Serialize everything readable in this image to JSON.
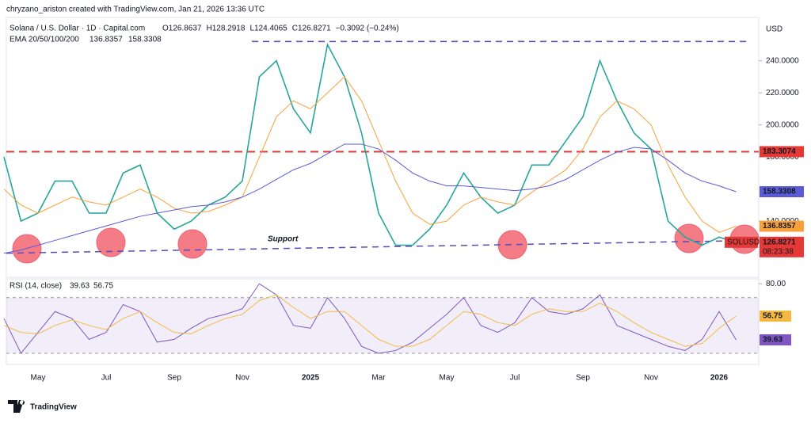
{
  "credit": "chryzano_ariston created with TradingView.com, Jan 21, 2026 13:36 UTC",
  "brand": "TradingView",
  "chart_data": {
    "type": "line",
    "title": "Solana / U.S. Dollar · 1D · Capital.com",
    "ohlc": [
      "O126.8637",
      "H128.2918",
      "L124.4065",
      "C126.8271",
      "−0.3092 (−0.24%)"
    ],
    "currency": "USD",
    "symbol": "SOLUSD",
    "countdown": "08:23:38",
    "indicator": "EMA 20/50/100/200",
    "categories": [
      null,
      null,
      "May",
      null,
      null,
      null,
      "Jul",
      null,
      null,
      null,
      "Sep",
      null,
      null,
      null,
      "Nov",
      null,
      null,
      null,
      "2025",
      null,
      null,
      null,
      "Mar",
      null,
      null,
      null,
      "May",
      null,
      null,
      null,
      "Jul",
      null,
      null,
      null,
      "Sep",
      null,
      null,
      null,
      "Nov",
      null,
      null,
      null,
      "2026",
      null
    ],
    "series": [
      {
        "name": "SOLUSD",
        "color": "#26a69a",
        "values": [
          180,
          140,
          145,
          165,
          165,
          145,
          145,
          170,
          175,
          145,
          135,
          140,
          150,
          155,
          165,
          230,
          240,
          210,
          195,
          250,
          230,
          195,
          145,
          125,
          125,
          135,
          150,
          170,
          155,
          145,
          150,
          175,
          175,
          190,
          205,
          240,
          215,
          195,
          185,
          140,
          130,
          125,
          130,
          126.8271
        ]
      },
      {
        "name": "EMA 50",
        "color": "#f7a13b",
        "values": [
          160,
          150,
          145,
          150,
          155,
          152,
          150,
          155,
          160,
          155,
          148,
          145,
          146,
          150,
          155,
          180,
          205,
          215,
          210,
          220,
          230,
          215,
          190,
          165,
          145,
          138,
          140,
          150,
          155,
          152,
          150,
          158,
          165,
          172,
          185,
          205,
          215,
          210,
          200,
          175,
          155,
          140,
          133,
          136.8357
        ]
      },
      {
        "name": "EMA 200",
        "color": "#5b5bd6",
        "values": [
          120,
          122,
          125,
          128,
          131,
          134,
          137,
          140,
          143,
          145,
          147,
          149,
          150,
          152,
          155,
          160,
          166,
          172,
          176,
          182,
          188,
          188,
          185,
          178,
          170,
          165,
          162,
          162,
          161,
          160,
          159,
          160,
          162,
          166,
          172,
          178,
          183,
          186,
          185,
          178,
          170,
          165,
          162,
          158.3308
        ]
      }
    ],
    "ylim": [
      105,
      267
    ],
    "yticks": [
      {
        "value": 140,
        "label": "140.0000"
      },
      {
        "value": 180,
        "label": "180.0000"
      },
      {
        "value": 200,
        "label": "200.0000"
      },
      {
        "value": 220,
        "label": "220.0000"
      },
      {
        "value": 240,
        "label": "240.0000"
      }
    ],
    "level": {
      "value": 183.3074,
      "color": "#e53935"
    },
    "resistance": {
      "value": 252,
      "color": "#5b4bb7"
    },
    "support": {
      "label": "Support",
      "start": 120,
      "end": 128,
      "color": "#5b4bb7"
    },
    "rsi": {
      "title": "RSI (14, close)",
      "ylim": [
        22,
        83.5
      ],
      "yticks": [
        {
          "value": 80,
          "label": "80.00"
        }
      ],
      "band": [
        30,
        70
      ],
      "series": [
        {
          "name": "RSI",
          "color": "#7e57c2",
          "values": [
            55,
            30,
            45,
            60,
            55,
            40,
            45,
            65,
            60,
            38,
            40,
            48,
            55,
            58,
            62,
            80,
            72,
            50,
            48,
            70,
            55,
            35,
            30,
            32,
            38,
            48,
            58,
            70,
            50,
            45,
            52,
            70,
            60,
            58,
            62,
            72,
            50,
            45,
            40,
            35,
            32,
            40,
            60,
            39.63
          ]
        },
        {
          "name": "RSI MA",
          "color": "#f5b942",
          "values": [
            50,
            45,
            44,
            50,
            54,
            50,
            47,
            55,
            60,
            52,
            45,
            44,
            50,
            55,
            58,
            68,
            72,
            63,
            55,
            60,
            60,
            50,
            40,
            35,
            35,
            40,
            50,
            60,
            58,
            52,
            50,
            58,
            62,
            60,
            60,
            66,
            60,
            52,
            45,
            40,
            35,
            37,
            48,
            56.75
          ]
        }
      ]
    }
  }
}
